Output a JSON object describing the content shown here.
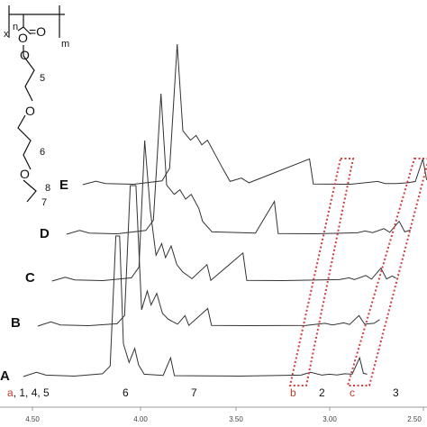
{
  "chart_data": {
    "type": "line",
    "xlabel": "",
    "ylabel": "",
    "x_axis": {
      "reversed": true,
      "xlim": [
        4.52,
        2.7
      ],
      "ticks": [
        "4.50",
        "4.00",
        "3.50",
        "3.00",
        "2.50"
      ]
    },
    "series": [
      {
        "name": "A"
      },
      {
        "name": "B"
      },
      {
        "name": "C"
      },
      {
        "name": "D"
      },
      {
        "name": "E"
      }
    ],
    "series_values": [
      [
        [
          4.52,
          0
        ],
        [
          4.45,
          18
        ],
        [
          4.4,
          6
        ],
        [
          4.25,
          2
        ],
        [
          4.1,
          12
        ],
        [
          4.06,
          45
        ],
        [
          4.03,
          600
        ],
        [
          4.01,
          600
        ],
        [
          3.99,
          140
        ],
        [
          3.96,
          60
        ],
        [
          3.93,
          120
        ],
        [
          3.91,
          50
        ],
        [
          3.88,
          10
        ],
        [
          3.78,
          5
        ],
        [
          3.74,
          80
        ],
        [
          3.72,
          4
        ],
        [
          3.55,
          3
        ],
        [
          3.38,
          2
        ],
        [
          3.05,
          6
        ],
        [
          3.0,
          18
        ],
        [
          2.94,
          6
        ],
        [
          2.9,
          10
        ],
        [
          2.86,
          7
        ],
        [
          2.82,
          12
        ],
        [
          2.78,
          10
        ],
        [
          2.74,
          80
        ],
        [
          2.72,
          14
        ],
        [
          2.7,
          10
        ]
      ],
      [
        [
          4.52,
          0
        ],
        [
          4.45,
          18
        ],
        [
          4.4,
          5
        ],
        [
          4.25,
          2
        ],
        [
          4.1,
          10
        ],
        [
          4.06,
          45
        ],
        [
          4.03,
          600
        ],
        [
          4.0,
          600
        ],
        [
          3.97,
          70
        ],
        [
          3.94,
          150
        ],
        [
          3.92,
          90
        ],
        [
          3.89,
          140
        ],
        [
          3.86,
          55
        ],
        [
          3.83,
          30
        ],
        [
          3.78,
          8
        ],
        [
          3.74,
          45
        ],
        [
          3.72,
          3
        ],
        [
          3.62,
          75
        ],
        [
          3.6,
          3
        ],
        [
          3.4,
          2
        ],
        [
          3.1,
          3
        ],
        [
          3.0,
          12
        ],
        [
          2.96,
          5
        ],
        [
          2.9,
          14
        ],
        [
          2.87,
          7
        ],
        [
          2.82,
          45
        ],
        [
          2.79,
          8
        ],
        [
          2.74,
          12
        ],
        [
          2.71,
          28
        ]
      ],
      [
        [
          4.52,
          0
        ],
        [
          4.45,
          16
        ],
        [
          4.4,
          5
        ],
        [
          4.25,
          2
        ],
        [
          4.1,
          14
        ],
        [
          4.06,
          60
        ],
        [
          4.03,
          600
        ],
        [
          4.0,
          300
        ],
        [
          3.97,
          110
        ],
        [
          3.94,
          160
        ],
        [
          3.92,
          100
        ],
        [
          3.89,
          150
        ],
        [
          3.86,
          70
        ],
        [
          3.83,
          40
        ],
        [
          3.78,
          10
        ],
        [
          3.7,
          70
        ],
        [
          3.68,
          3
        ],
        [
          3.51,
          120
        ],
        [
          3.49,
          3
        ],
        [
          3.3,
          2
        ],
        [
          3.0,
          6
        ],
        [
          2.95,
          14
        ],
        [
          2.92,
          6
        ],
        [
          2.86,
          24
        ],
        [
          2.83,
          8
        ],
        [
          2.78,
          55
        ],
        [
          2.75,
          9
        ],
        [
          2.72,
          22
        ],
        [
          2.7,
          12
        ]
      ],
      [
        [
          4.52,
          0
        ],
        [
          4.45,
          16
        ],
        [
          4.4,
          5
        ],
        [
          4.25,
          2
        ],
        [
          4.1,
          16
        ],
        [
          4.06,
          60
        ],
        [
          4.02,
          600
        ],
        [
          3.99,
          210
        ],
        [
          3.95,
          170
        ],
        [
          3.92,
          190
        ],
        [
          3.89,
          150
        ],
        [
          3.86,
          170
        ],
        [
          3.82,
          110
        ],
        [
          3.8,
          55
        ],
        [
          3.75,
          10
        ],
        [
          3.52,
          5
        ],
        [
          3.42,
          140
        ],
        [
          3.4,
          3
        ],
        [
          3.2,
          2
        ],
        [
          2.98,
          6
        ],
        [
          2.94,
          14
        ],
        [
          2.9,
          7
        ],
        [
          2.84,
          24
        ],
        [
          2.81,
          8
        ],
        [
          2.76,
          55
        ],
        [
          2.73,
          10
        ],
        [
          2.7,
          18
        ]
      ],
      [
        [
          4.52,
          0
        ],
        [
          4.45,
          15
        ],
        [
          4.4,
          5
        ],
        [
          4.25,
          2
        ],
        [
          4.1,
          16
        ],
        [
          4.06,
          70
        ],
        [
          4.02,
          600
        ],
        [
          3.99,
          230
        ],
        [
          3.95,
          190
        ],
        [
          3.92,
          210
        ],
        [
          3.89,
          170
        ],
        [
          3.86,
          190
        ],
        [
          3.82,
          130
        ],
        [
          3.78,
          70
        ],
        [
          3.74,
          14
        ],
        [
          3.68,
          28
        ],
        [
          3.64,
          8
        ],
        [
          3.32,
          110
        ],
        [
          3.3,
          3
        ],
        [
          3.1,
          2
        ],
        [
          2.96,
          14
        ],
        [
          2.92,
          5
        ],
        [
          2.86,
          5
        ],
        [
          2.8,
          8
        ],
        [
          2.76,
          14
        ],
        [
          2.72,
          110
        ],
        [
          2.7,
          20
        ]
      ]
    ]
  },
  "trace_labels": [
    "A",
    "B",
    "C",
    "D",
    "E"
  ],
  "structure": {
    "x": "x",
    "n": "n",
    "m": "m",
    "five": "5",
    "six": "6",
    "seven": "7",
    "eight": "8"
  },
  "assignments": {
    "a": "a",
    "a_rest": ", 1, 4, 5",
    "six": "6",
    "seven": "7",
    "b": "b",
    "two": "2",
    "c": "c",
    "three": "3"
  },
  "colors": {
    "trace": "#333333",
    "box": "#d33d3d",
    "axis": "#999999"
  }
}
